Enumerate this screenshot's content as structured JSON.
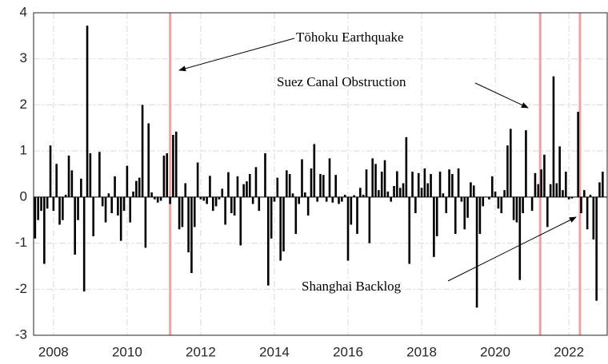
{
  "chart_data": {
    "type": "bar",
    "color": "#000000",
    "xlim": [
      2007.46,
      2023.04
    ],
    "ylim": [
      -3,
      4
    ],
    "xticks": [
      2008,
      2010,
      2012,
      2014,
      2016,
      2018,
      2020,
      2022
    ],
    "yticks": [
      -3,
      -2,
      -1,
      0,
      1,
      2,
      3,
      4
    ],
    "grid": true,
    "x": [
      2007.5,
      2007.583,
      2007.667,
      2007.75,
      2007.833,
      2007.917,
      2008,
      2008.083,
      2008.167,
      2008.25,
      2008.333,
      2008.417,
      2008.5,
      2008.583,
      2008.667,
      2008.75,
      2008.833,
      2008.917,
      2009,
      2009.083,
      2009.167,
      2009.25,
      2009.333,
      2009.417,
      2009.5,
      2009.583,
      2009.667,
      2009.75,
      2009.833,
      2009.917,
      2010,
      2010.083,
      2010.167,
      2010.25,
      2010.333,
      2010.417,
      2010.5,
      2010.583,
      2010.667,
      2010.75,
      2010.833,
      2010.917,
      2011,
      2011.083,
      2011.167,
      2011.25,
      2011.333,
      2011.417,
      2011.5,
      2011.583,
      2011.667,
      2011.75,
      2011.833,
      2011.917,
      2012,
      2012.083,
      2012.167,
      2012.25,
      2012.333,
      2012.417,
      2012.5,
      2012.583,
      2012.667,
      2012.75,
      2012.833,
      2012.917,
      2013,
      2013.083,
      2013.167,
      2013.25,
      2013.333,
      2013.417,
      2013.5,
      2013.583,
      2013.667,
      2013.75,
      2013.833,
      2013.917,
      2014,
      2014.083,
      2014.167,
      2014.25,
      2014.333,
      2014.417,
      2014.5,
      2014.583,
      2014.667,
      2014.75,
      2014.833,
      2014.917,
      2015,
      2015.083,
      2015.167,
      2015.25,
      2015.333,
      2015.417,
      2015.5,
      2015.583,
      2015.667,
      2015.75,
      2015.833,
      2015.917,
      2016,
      2016.083,
      2016.167,
      2016.25,
      2016.333,
      2016.417,
      2016.5,
      2016.583,
      2016.667,
      2016.75,
      2016.833,
      2016.917,
      2017,
      2017.083,
      2017.167,
      2017.25,
      2017.333,
      2017.417,
      2017.5,
      2017.583,
      2017.667,
      2017.75,
      2017.833,
      2017.917,
      2018,
      2018.083,
      2018.167,
      2018.25,
      2018.333,
      2018.417,
      2018.5,
      2018.583,
      2018.667,
      2018.75,
      2018.833,
      2018.917,
      2019,
      2019.083,
      2019.167,
      2019.25,
      2019.333,
      2019.417,
      2019.5,
      2019.583,
      2019.667,
      2019.75,
      2019.833,
      2019.917,
      2020,
      2020.083,
      2020.167,
      2020.25,
      2020.333,
      2020.417,
      2020.5,
      2020.583,
      2020.667,
      2020.75,
      2020.833,
      2020.917,
      2021,
      2021.083,
      2021.167,
      2021.25,
      2021.333,
      2021.417,
      2021.5,
      2021.583,
      2021.667,
      2021.75,
      2021.833,
      2021.917,
      2022,
      2022.083,
      2022.167,
      2022.25,
      2022.333,
      2022.417,
      2022.5,
      2022.583,
      2022.667,
      2022.75,
      2022.833,
      2022.917
    ],
    "values": [
      -0.9,
      -0.5,
      -0.3,
      -1.45,
      -0.25,
      1.12,
      -0.3,
      0.72,
      -0.6,
      -0.5,
      0.05,
      0.9,
      0.58,
      -1.25,
      -0.5,
      0.4,
      -2.05,
      3.72,
      0.95,
      -0.85,
      0.0,
      0.98,
      -0.2,
      -0.55,
      0.08,
      -0.35,
      0.45,
      -0.4,
      -0.95,
      -0.3,
      0.68,
      -0.55,
      0.12,
      0.35,
      0.42,
      2.0,
      -1.1,
      1.6,
      0.1,
      -0.05,
      -0.12,
      -0.08,
      0.9,
      0.95,
      -0.15,
      1.35,
      1.42,
      -0.7,
      -0.65,
      0.3,
      -1.2,
      -1.65,
      -0.65,
      0.75,
      -0.05,
      -0.08,
      -0.15,
      0.46,
      -0.3,
      -0.2,
      -0.05,
      0.18,
      -0.6,
      0.54,
      -0.35,
      -0.4,
      0.45,
      -1.05,
      0.28,
      0.34,
      0.5,
      -0.15,
      0.65,
      -0.3,
      0.0,
      0.95,
      -1.92,
      -0.9,
      -0.1,
      0.42,
      -1.38,
      -1.18,
      0.58,
      0.5,
      0.08,
      -0.8,
      -0.15,
      0.82,
      0.1,
      -0.4,
      0.62,
      1.15,
      -0.1,
      0.5,
      0.48,
      -0.1,
      0.84,
      -0.12,
      0.48,
      -0.15,
      -0.1,
      0.05,
      -1.38,
      -0.6,
      0.04,
      -0.8,
      0.2,
      0.05,
      0.6,
      -1.0,
      0.84,
      0.72,
      0.15,
      0.55,
      0.8,
      0.12,
      -0.1,
      0.24,
      0.56,
      0.2,
      0.3,
      1.3,
      -1.45,
      0.55,
      -0.35,
      0.52,
      0.2,
      0.62,
      0.3,
      0.5,
      -1.3,
      -0.85,
      0.55,
      0.08,
      -0.35,
      0.6,
      0.5,
      -0.8,
      0.62,
      -0.1,
      -0.7,
      -0.45,
      0.32,
      0.25,
      -2.4,
      -0.8,
      -0.2,
      0.0,
      -0.05,
      0.45,
      0.12,
      -0.25,
      -0.35,
      0.15,
      1.12,
      1.48,
      -0.5,
      -0.55,
      -1.8,
      -0.35,
      1.45,
      0.0,
      -0.3,
      0.52,
      0.28,
      0.6,
      0.92,
      -0.65,
      0.28,
      2.62,
      0.3,
      1.1,
      0.15,
      0.55,
      -0.05,
      -0.03,
      0.0,
      1.85,
      -0.35,
      0.15,
      -0.7,
      0.05,
      -0.92,
      -2.25,
      0.32,
      0.55
    ],
    "events": [
      {
        "label": "Tōhoku Earthquake",
        "x": 2011.17,
        "color": "#f4a0a0"
      },
      {
        "label": "Suez Canal Obstruction",
        "x": 2021.22,
        "color": "#f4a0a0"
      },
      {
        "label": "Shanghai Backlog",
        "x": 2022.3,
        "color": "#f4a0a0"
      }
    ]
  }
}
